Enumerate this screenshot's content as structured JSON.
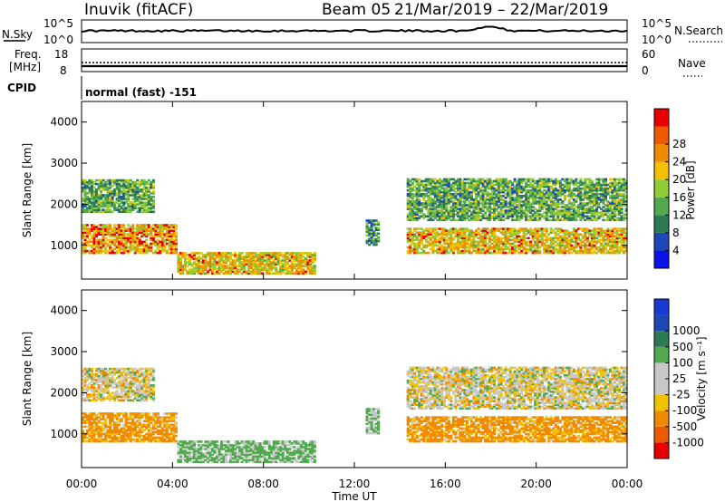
{
  "header": {
    "station": "Inuvik (fitACF)",
    "beam_label": "Beam 05",
    "date_range": "21/Mar/2019 – 22/Mar/2019"
  },
  "top_panels": {
    "nsky_label": "N.Sky",
    "nsearch_label": "N.Search",
    "nsky_ticks": [
      "10^5",
      "10^0"
    ],
    "nsearch_ticks": [
      "10^5",
      "10^0"
    ],
    "freq_label_1": "Freq.",
    "freq_label_2": "[MHz]",
    "freq_ticks": [
      "18",
      "8"
    ],
    "nave_label": "Nave",
    "nave_ticks": [
      "60",
      "0"
    ],
    "cpid_label": "CPID",
    "cpid_value": "normal (fast) -151"
  },
  "colors": {
    "power_scale": [
      "#0a14e6",
      "#1e46b4",
      "#2e7a57",
      "#52a950",
      "#8fcc35",
      "#f2c200",
      "#f08a00",
      "#ee5a00",
      "#e80000"
    ],
    "velocity_scale": [
      "#e80000",
      "#ee5a00",
      "#f08a00",
      "#f2c200",
      "#c8c8c8",
      "#c8c8c8",
      "#52a950",
      "#2e7a57",
      "#1e46b4",
      "#1a3ad6"
    ]
  },
  "chart_data": [
    {
      "type": "heatmap",
      "name": "power",
      "ylabel": "Slant Range [km]",
      "colorbar_label": "Power [dB]",
      "colorbar_ticks": [
        "4",
        "8",
        "12",
        "16",
        "20",
        "24",
        "28"
      ],
      "ylim": [
        180,
        4500
      ],
      "y_ticks": [
        "1000",
        "2000",
        "3000",
        "4000"
      ],
      "x_ticks": [
        "00:00",
        "04:00",
        "08:00",
        "12:00",
        "16:00",
        "20:00",
        "00:00"
      ],
      "regions": [
        {
          "t0": 0.0,
          "t1": 4.2,
          "r0": 800,
          "r1": 1500,
          "value_db": 24
        },
        {
          "t0": 0.0,
          "t1": 3.2,
          "r0": 1800,
          "r1": 2600,
          "value_db": 14
        },
        {
          "t0": 4.2,
          "t1": 10.2,
          "r0": 300,
          "r1": 800,
          "value_db": 22
        },
        {
          "t0": 12.5,
          "t1": 13.0,
          "r0": 1000,
          "r1": 1600,
          "value_db": 12
        },
        {
          "t0": 14.3,
          "t1": 24.0,
          "r0": 800,
          "r1": 1400,
          "value_db": 22
        },
        {
          "t0": 14.3,
          "t1": 24.0,
          "r0": 1600,
          "r1": 2600,
          "value_db": 14
        }
      ]
    },
    {
      "type": "heatmap",
      "name": "velocity",
      "ylabel": "Slant Range [km]",
      "colorbar_label": "Velocity [m s⁻¹]",
      "colorbar_ticks": [
        "-1000",
        "-500",
        "-100",
        "-25",
        "25",
        "100",
        "500",
        "1000"
      ],
      "ylim": [
        180,
        4500
      ],
      "y_ticks": [
        "1000",
        "2000",
        "3000",
        "4000"
      ],
      "x_ticks": [
        "00:00",
        "04:00",
        "08:00",
        "12:00",
        "16:00",
        "20:00",
        "00:00"
      ],
      "xlabel": "Time UT",
      "regions": [
        {
          "t0": 0.0,
          "t1": 4.2,
          "r0": 800,
          "r1": 1500,
          "value_ms": -150
        },
        {
          "t0": 0.0,
          "t1": 3.2,
          "r0": 1800,
          "r1": 2600,
          "value_ms": 0
        },
        {
          "t0": 4.2,
          "t1": 10.2,
          "r0": 300,
          "r1": 800,
          "value_ms": 150
        },
        {
          "t0": 12.5,
          "t1": 13.0,
          "r0": 1000,
          "r1": 1600,
          "value_ms": 120
        },
        {
          "t0": 14.3,
          "t1": 24.0,
          "r0": 800,
          "r1": 1400,
          "value_ms": -150
        },
        {
          "t0": 14.3,
          "t1": 24.0,
          "r0": 1600,
          "r1": 2600,
          "value_ms": 0
        }
      ]
    }
  ]
}
